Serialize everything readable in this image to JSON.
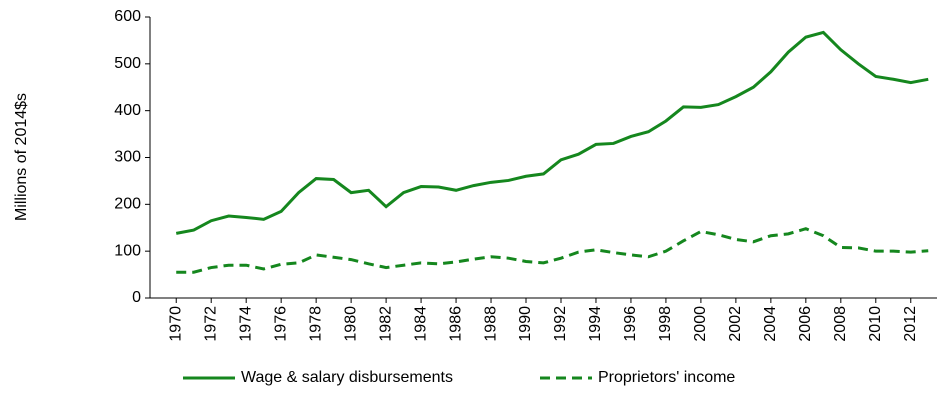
{
  "chart_data": {
    "type": "line",
    "y_label": "Millions of 2014$s",
    "x": [
      1970,
      1971,
      1972,
      1973,
      1974,
      1975,
      1976,
      1977,
      1978,
      1979,
      1980,
      1981,
      1982,
      1983,
      1984,
      1985,
      1986,
      1987,
      1988,
      1989,
      1990,
      1991,
      1992,
      1993,
      1994,
      1995,
      1996,
      1997,
      1998,
      1999,
      2000,
      2001,
      2002,
      2003,
      2004,
      2005,
      2006,
      2007,
      2008,
      2009,
      2010,
      2011,
      2012,
      2013
    ],
    "series": [
      {
        "name": "Wage & salary disbursements",
        "color": "#15871e",
        "dash": "solid",
        "values": [
          138,
          145,
          165,
          175,
          172,
          168,
          185,
          225,
          255,
          253,
          225,
          230,
          195,
          225,
          238,
          237,
          230,
          240,
          247,
          251,
          260,
          265,
          295,
          307,
          328,
          330,
          345,
          355,
          378,
          408,
          407,
          413,
          430,
          450,
          483,
          525,
          557,
          567,
          530,
          500,
          473,
          467,
          460,
          467
        ]
      },
      {
        "name": "Proprietors' income",
        "color": "#15871e",
        "dash": "dashed",
        "values": [
          55,
          55,
          65,
          70,
          70,
          62,
          72,
          75,
          92,
          87,
          82,
          73,
          65,
          70,
          75,
          73,
          77,
          83,
          88,
          85,
          78,
          75,
          85,
          98,
          103,
          97,
          92,
          88,
          100,
          122,
          142,
          135,
          125,
          120,
          133,
          137,
          148,
          133,
          108,
          107,
          100,
          100,
          98,
          101
        ]
      }
    ],
    "xlim": [
      1968.5,
      2013.5
    ],
    "xticks": [
      1970,
      1972,
      1974,
      1976,
      1978,
      1980,
      1982,
      1984,
      1986,
      1988,
      1990,
      1992,
      1994,
      1996,
      1998,
      2000,
      2002,
      2004,
      2006,
      2008,
      2010,
      2012
    ],
    "ylim": [
      0,
      600
    ],
    "yticks": [
      0,
      100,
      200,
      300,
      400,
      500,
      600
    ],
    "legend": "bottom"
  }
}
